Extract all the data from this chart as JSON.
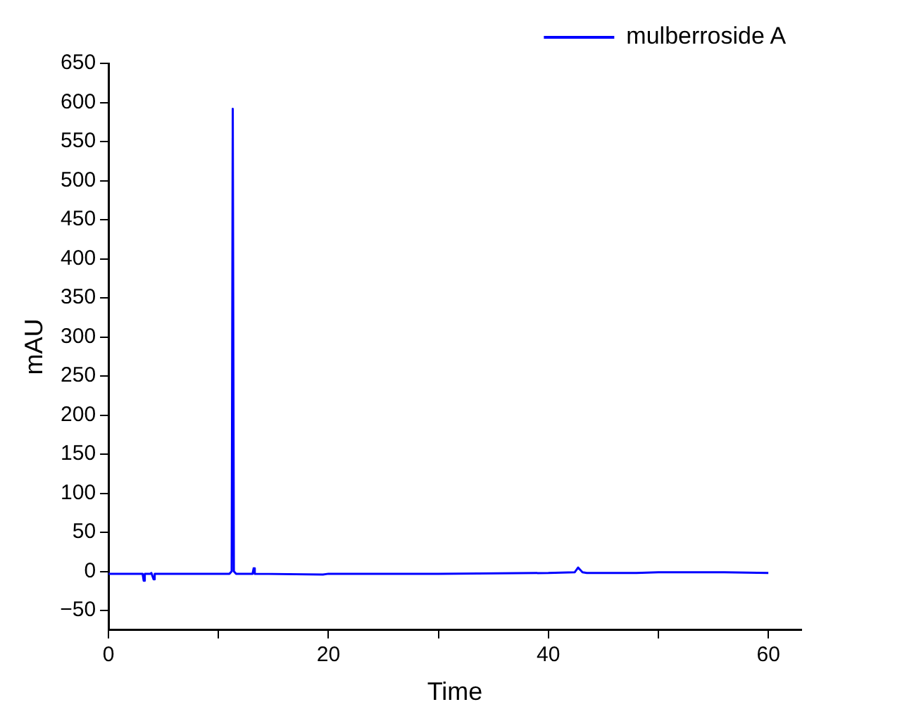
{
  "chart_data": {
    "type": "line",
    "xlabel": "Time",
    "ylabel": "mAU",
    "legend": "top right",
    "grid": false,
    "marker": "none",
    "line_style": "solid",
    "xlim": [
      0,
      63
    ],
    "xticks": [
      0,
      {
        "value": 10,
        "label": null
      },
      20,
      {
        "value": 30,
        "label": null
      },
      40,
      {
        "value": 50,
        "label": null
      },
      60
    ],
    "ylim": [
      -75,
      650
    ],
    "yticks": [
      -50,
      0,
      50,
      100,
      150,
      200,
      250,
      300,
      350,
      400,
      450,
      500,
      550,
      600,
      650
    ],
    "series": [
      {
        "name": "mulberroside A",
        "color": "#0000ff",
        "x": [
          0,
          3.1,
          3.2,
          3.3,
          3.8,
          3.9,
          4.1,
          4.2,
          11.0,
          11.2,
          11.3,
          11.4,
          11.6,
          13.1,
          13.2,
          13.3,
          19.5,
          20,
          30,
          40,
          42.4,
          42.7,
          43.1,
          43.5,
          48,
          50,
          56,
          60
        ],
        "values": [
          -3,
          -3,
          -12,
          -3,
          -3,
          -2,
          -10,
          -3,
          -3,
          0,
          592,
          0,
          -3,
          -3,
          4,
          -3,
          -4,
          -3,
          -3,
          -2,
          -1,
          5,
          -1,
          -2,
          -2,
          -1,
          -1,
          -2
        ]
      }
    ]
  }
}
